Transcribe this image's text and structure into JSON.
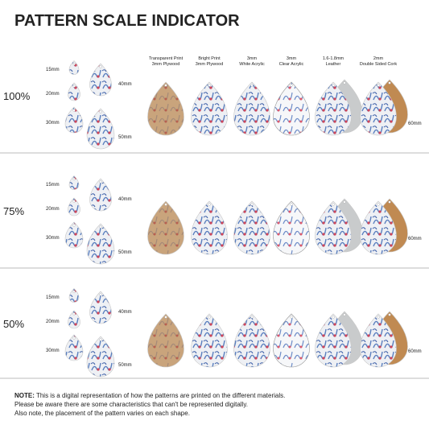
{
  "title": "PATTERN SCALE INDICATOR",
  "materials": [
    [
      "Transparent Print",
      "3mm Plywood"
    ],
    [
      "Bright Print",
      "3mm Plywood"
    ],
    [
      "3mm",
      "White Acrylic"
    ],
    [
      "3mm",
      "Clear Acrylic"
    ],
    [
      "1.6-1.8mm",
      "Leather"
    ],
    [
      "2mm",
      "Double Sided Cork"
    ]
  ],
  "rows": [
    {
      "scale": "100%",
      "sizes": [
        "15mm",
        "20mm",
        "30mm",
        "40mm",
        "50mm"
      ],
      "right_label": "60mm"
    },
    {
      "scale": "75%",
      "sizes": [
        "15mm",
        "20mm",
        "30mm",
        "40mm",
        "50mm"
      ],
      "right_label": "60mm"
    },
    {
      "scale": "50%",
      "sizes": [
        "15mm",
        "20mm",
        "30mm",
        "40mm",
        "50mm"
      ],
      "right_label": "60mm"
    }
  ],
  "note": {
    "label": "NOTE:",
    "lines": [
      " This is a digital representation of how the patterns are printed on the different materials.",
      "Please be aware there are some characteristics that can't be represented digitally.",
      "Also note, the placement of the pattern varies on each shape."
    ]
  }
}
